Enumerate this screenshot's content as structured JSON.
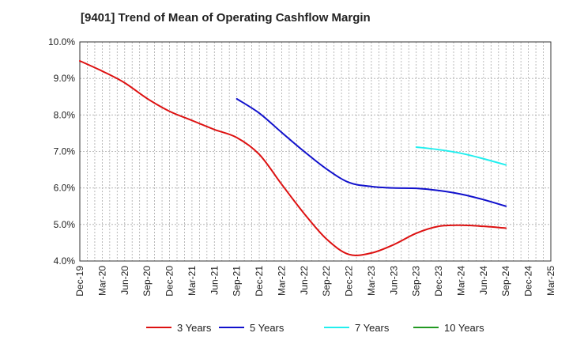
{
  "chart_data": {
    "type": "line",
    "title": "[9401]  Trend of Mean of Operating Cashflow Margin",
    "xlabel": "",
    "ylabel": "",
    "ylim": [
      4.0,
      10.0
    ],
    "y_ticks": [
      "4.0%",
      "5.0%",
      "6.0%",
      "7.0%",
      "8.0%",
      "9.0%",
      "10.0%"
    ],
    "x_ticks": [
      "Dec-19",
      "Mar-20",
      "Jun-20",
      "Sep-20",
      "Dec-20",
      "Mar-21",
      "Jun-21",
      "Sep-21",
      "Dec-21",
      "Mar-22",
      "Jun-22",
      "Sep-22",
      "Dec-22",
      "Mar-23",
      "Jun-23",
      "Sep-23",
      "Dec-23",
      "Mar-24",
      "Jun-24",
      "Sep-24",
      "Dec-24",
      "Mar-25"
    ],
    "grid": true,
    "legend_position": "bottom",
    "series": [
      {
        "name": "3 Years",
        "color": "#dd1111",
        "points": [
          [
            "Dec-19",
            9.48
          ],
          [
            "Mar-20",
            9.2
          ],
          [
            "Jun-20",
            8.88
          ],
          [
            "Sep-20",
            8.45
          ],
          [
            "Dec-20",
            8.1
          ],
          [
            "Mar-21",
            7.85
          ],
          [
            "Jun-21",
            7.6
          ],
          [
            "Sep-21",
            7.38
          ],
          [
            "Dec-21",
            6.92
          ],
          [
            "Mar-22",
            6.1
          ],
          [
            "Jun-22",
            5.3
          ],
          [
            "Sep-22",
            4.6
          ],
          [
            "Dec-22",
            4.18
          ],
          [
            "Mar-23",
            4.22
          ],
          [
            "Jun-23",
            4.45
          ],
          [
            "Sep-23",
            4.76
          ],
          [
            "Dec-23",
            4.95
          ],
          [
            "Mar-24",
            4.98
          ],
          [
            "Jun-24",
            4.95
          ],
          [
            "Sep-24",
            4.9
          ]
        ]
      },
      {
        "name": "5 Years",
        "color": "#1111cc",
        "points": [
          [
            "Sep-21",
            8.44
          ],
          [
            "Dec-21",
            8.05
          ],
          [
            "Mar-22",
            7.52
          ],
          [
            "Jun-22",
            7.0
          ],
          [
            "Sep-22",
            6.52
          ],
          [
            "Dec-22",
            6.15
          ],
          [
            "Mar-23",
            6.04
          ],
          [
            "Jun-23",
            6.0
          ],
          [
            "Sep-23",
            5.99
          ],
          [
            "Dec-23",
            5.93
          ],
          [
            "Mar-24",
            5.83
          ],
          [
            "Jun-24",
            5.68
          ],
          [
            "Sep-24",
            5.5
          ]
        ]
      },
      {
        "name": "7 Years",
        "color": "#22eeee",
        "points": [
          [
            "Sep-23",
            7.12
          ],
          [
            "Dec-23",
            7.05
          ],
          [
            "Mar-24",
            6.95
          ],
          [
            "Jun-24",
            6.8
          ],
          [
            "Sep-24",
            6.63
          ]
        ]
      },
      {
        "name": "10 Years",
        "color": "#229922",
        "points": []
      }
    ]
  }
}
